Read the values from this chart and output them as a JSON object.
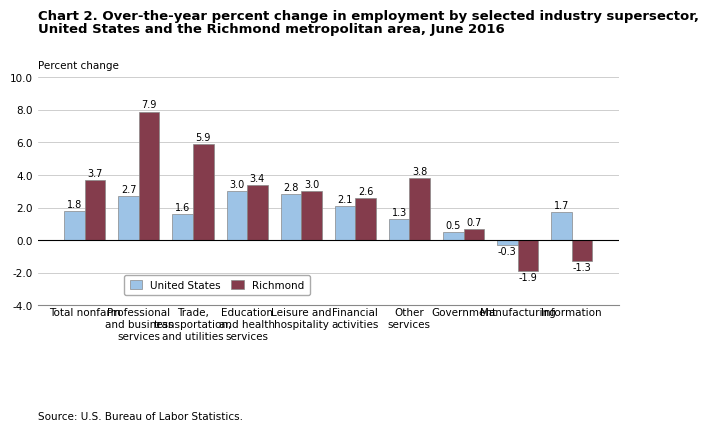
{
  "title_line1": "Chart 2. Over-the-year percent change in employment by selected industry supersector,",
  "title_line2": "United States and the Richmond metropolitan area, June 2016",
  "ylabel": "Percent change",
  "categories": [
    "Total nonfarm",
    "Professional\nand business\nservices",
    "Trade,\ntransportation,\nand utilities",
    "Education\nand health\nservices",
    "Leisure and\nhospitality",
    "Financial\nactivities",
    "Other\nservices",
    "Government",
    "Manufacturing",
    "Information"
  ],
  "us_values": [
    1.8,
    2.7,
    1.6,
    3.0,
    2.8,
    2.1,
    1.3,
    0.5,
    -0.3,
    1.7
  ],
  "richmond_values": [
    3.7,
    7.9,
    5.9,
    3.4,
    3.0,
    2.6,
    3.8,
    0.7,
    -1.9,
    -1.3
  ],
  "us_color": "#9DC3E6",
  "richmond_color": "#843C4C",
  "ylim": [
    -4.0,
    10.0
  ],
  "yticks": [
    -4.0,
    -2.0,
    0.0,
    2.0,
    4.0,
    6.0,
    8.0,
    10.0
  ],
  "legend_us": "United States",
  "legend_richmond": "Richmond",
  "source": "Source: U.S. Bureau of Labor Statistics.",
  "bar_width": 0.38,
  "title_fontsize": 9.5,
  "label_fontsize": 7.5,
  "tick_fontsize": 7.5,
  "value_fontsize": 7.0
}
